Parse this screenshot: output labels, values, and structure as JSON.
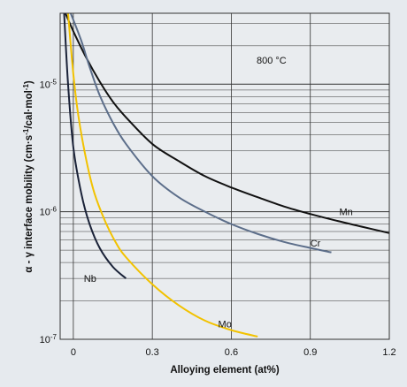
{
  "chart_data": {
    "type": "line",
    "title": "",
    "annotation": "800 °C",
    "xlabel": "Alloying element (at%)",
    "ylabel_parts": [
      "α - γ interface mobility (cm·s",
      "-1",
      "/cal·mol",
      "-1",
      ")"
    ],
    "xlim": [
      -0.05,
      1.2
    ],
    "ylim": [
      1e-07,
      3.6e-05
    ],
    "yscale": "log",
    "grid": true,
    "x_ticks": [
      {
        "value": 0,
        "label": "0"
      },
      {
        "value": 0.3,
        "label": "0.3"
      },
      {
        "value": 0.6,
        "label": "0.6"
      },
      {
        "value": 0.9,
        "label": "0.9"
      },
      {
        "value": 1.2,
        "label": "1.2"
      }
    ],
    "y_ticks": [
      {
        "value": 1e-07,
        "base": "10",
        "exp": "-7"
      },
      {
        "value": 1e-06,
        "base": "10",
        "exp": "-6"
      },
      {
        "value": 1e-05,
        "base": "10",
        "exp": "-5"
      }
    ],
    "series": [
      {
        "name": "Mn",
        "color": "#111111",
        "x": [
          -0.03,
          0.0,
          0.05,
          0.1,
          0.15,
          0.2,
          0.3,
          0.4,
          0.5,
          0.6,
          0.7,
          0.8,
          0.9,
          1.0,
          1.1,
          1.2
        ],
        "y": [
          3.6e-05,
          2.6e-05,
          1.6e-05,
          1.05e-05,
          7.3e-06,
          5.5e-06,
          3.4e-06,
          2.5e-06,
          1.9e-06,
          1.55e-06,
          1.3e-06,
          1.1e-06,
          9.6e-07,
          8.5e-07,
          7.6e-07,
          6.8e-07
        ]
      },
      {
        "name": "Cr",
        "color": "#5c6e8a",
        "x": [
          -0.01,
          0.03,
          0.06,
          0.1,
          0.15,
          0.2,
          0.3,
          0.4,
          0.5,
          0.6,
          0.7,
          0.8,
          0.9,
          0.98
        ],
        "y": [
          3.6e-05,
          2.2e-05,
          1.4e-05,
          8.2e-06,
          5e-06,
          3.4e-06,
          1.9e-06,
          1.3e-06,
          1e-06,
          8e-07,
          6.7e-07,
          5.8e-07,
          5.2e-07,
          4.8e-07
        ]
      },
      {
        "name": "Mo",
        "color": "#f2c200",
        "x": [
          -0.02,
          0.0,
          0.02,
          0.05,
          0.08,
          0.12,
          0.16,
          0.2,
          0.3,
          0.4,
          0.5,
          0.6,
          0.7
        ],
        "y": [
          3.6e-05,
          1.2e-05,
          5.5e-06,
          2.5e-06,
          1.4e-06,
          8.5e-07,
          5.8e-07,
          4.4e-07,
          2.7e-07,
          1.85e-07,
          1.4e-07,
          1.18e-07,
          1.05e-07
        ]
      },
      {
        "name": "Nb",
        "color": "#1a2238",
        "x": [
          -0.035,
          -0.02,
          0.0,
          0.03,
          0.06,
          0.1,
          0.15,
          0.2
        ],
        "y": [
          3.6e-05,
          1e-05,
          3.2e-06,
          1.4e-06,
          8.2e-07,
          5.2e-07,
          3.7e-07,
          3e-07
        ]
      }
    ],
    "series_label_anchors": [
      {
        "name": "Mn",
        "x": 1.01,
        "y": 1e-06
      },
      {
        "name": "Cr",
        "x": 0.9,
        "y": 5.7e-07
      },
      {
        "name": "Nb",
        "x": 0.04,
        "y": 3e-07
      },
      {
        "name": "Mo",
        "x": 0.55,
        "y": 1.32e-07
      }
    ]
  }
}
